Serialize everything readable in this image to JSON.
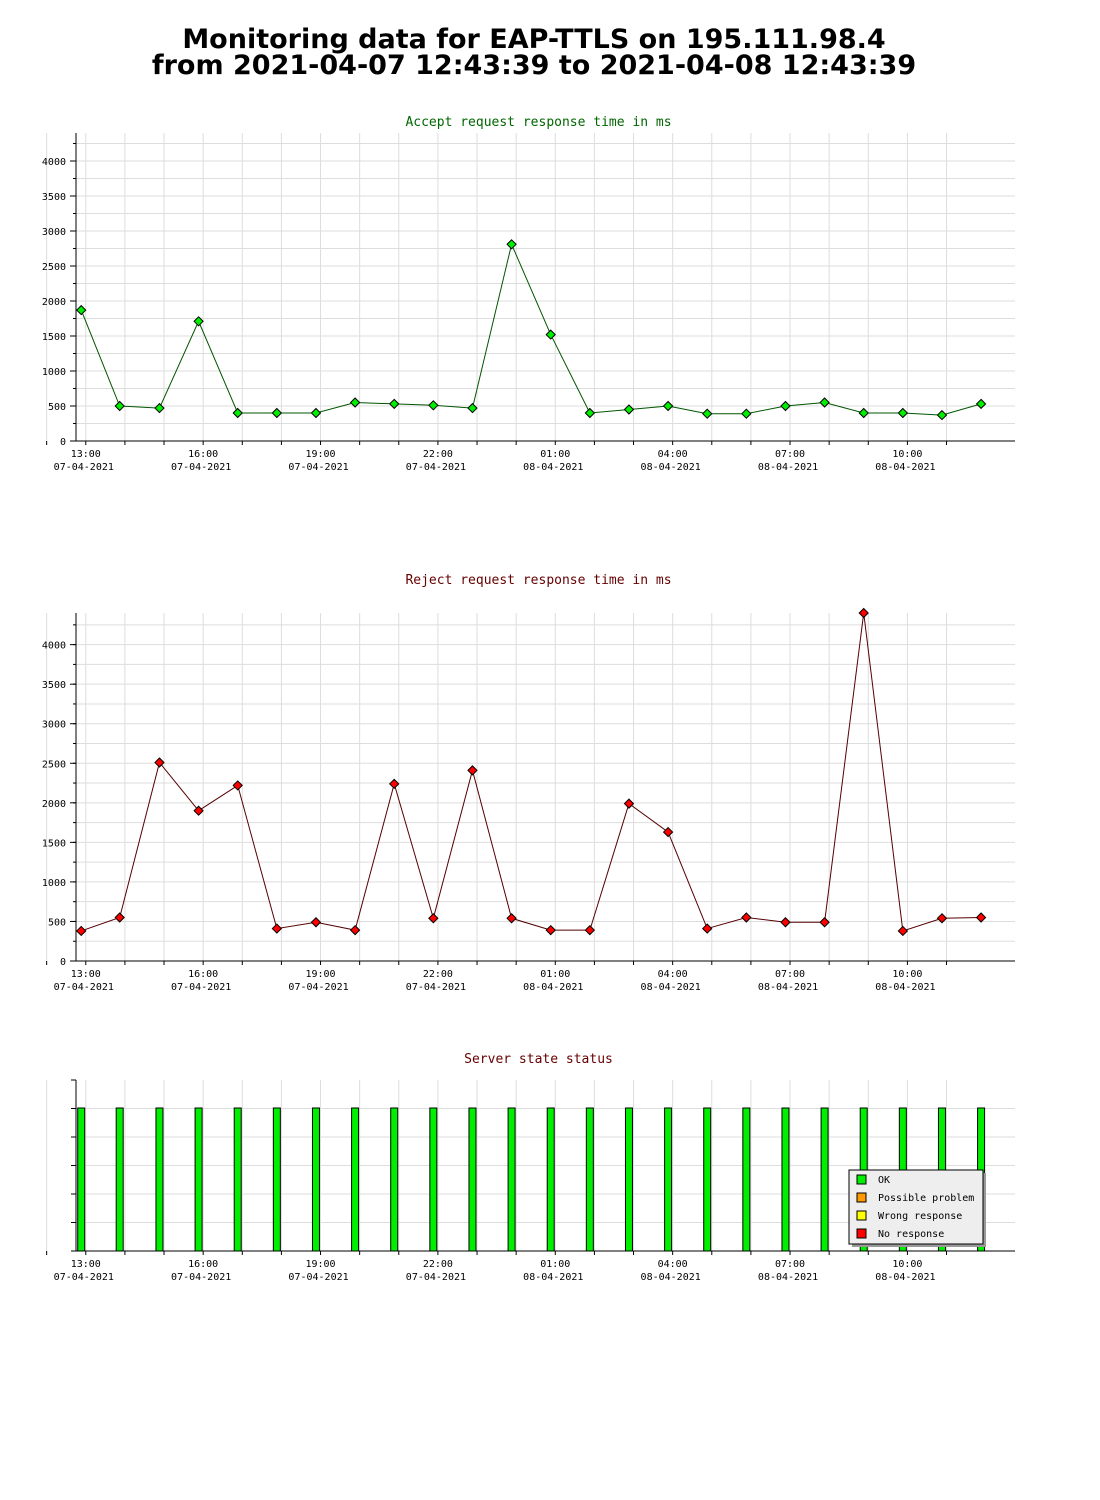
{
  "title": {
    "line1": "Monitoring data for EAP-TTLS on 195.111.98.4",
    "line2": "from 2021-04-07 12:43:39 to 2021-04-08 12:43:39"
  },
  "colors": {
    "accept_title": "#006600",
    "reject_title": "#660000",
    "status_title": "#660000",
    "accept_marker": "#00ee00",
    "reject_marker": "#ff0000",
    "ok": "#00ee00",
    "possible_problem": "#ff9900",
    "wrong_response": "#ffff00",
    "no_response": "#ff0000"
  },
  "chart_data": [
    {
      "type": "line",
      "title": "Accept request response time in ms",
      "xlabel": "",
      "ylabel": "",
      "ylim": [
        0,
        4400
      ],
      "y_ticks": [
        0,
        500,
        1000,
        1500,
        2000,
        2500,
        3000,
        3500,
        4000
      ],
      "x_ticks": [
        {
          "time": "13:00",
          "date": "07-04-2021"
        },
        {
          "time": "16:00",
          "date": "07-04-2021"
        },
        {
          "time": "19:00",
          "date": "07-04-2021"
        },
        {
          "time": "22:00",
          "date": "07-04-2021"
        },
        {
          "time": "01:00",
          "date": "08-04-2021"
        },
        {
          "time": "04:00",
          "date": "08-04-2021"
        },
        {
          "time": "07:00",
          "date": "08-04-2021"
        },
        {
          "time": "10:00",
          "date": "08-04-2021"
        }
      ],
      "x": [
        "12:53",
        "13:52",
        "14:53",
        "15:53",
        "16:53",
        "17:53",
        "18:53",
        "19:53",
        "20:53",
        "21:53",
        "22:53",
        "23:53",
        "00:53",
        "01:53",
        "02:53",
        "03:53",
        "04:53",
        "05:53",
        "06:53",
        "07:53",
        "08:53",
        "09:53",
        "10:53",
        "11:53"
      ],
      "values": [
        1870,
        500,
        470,
        1710,
        400,
        400,
        400,
        550,
        530,
        510,
        470,
        2810,
        1520,
        400,
        450,
        500,
        390,
        390,
        500,
        550,
        400,
        400,
        370,
        530
      ],
      "grid": true
    },
    {
      "type": "line",
      "title": "Reject request response time in ms",
      "xlabel": "",
      "ylabel": "",
      "ylim": [
        0,
        4400
      ],
      "y_ticks": [
        0,
        500,
        1000,
        1500,
        2000,
        2500,
        3000,
        3500,
        4000
      ],
      "x_ticks": [
        {
          "time": "13:00",
          "date": "07-04-2021"
        },
        {
          "time": "16:00",
          "date": "07-04-2021"
        },
        {
          "time": "19:00",
          "date": "07-04-2021"
        },
        {
          "time": "22:00",
          "date": "07-04-2021"
        },
        {
          "time": "01:00",
          "date": "08-04-2021"
        },
        {
          "time": "04:00",
          "date": "08-04-2021"
        },
        {
          "time": "07:00",
          "date": "08-04-2021"
        },
        {
          "time": "10:00",
          "date": "08-04-2021"
        }
      ],
      "x": [
        "12:53",
        "13:52",
        "14:53",
        "15:53",
        "16:53",
        "17:53",
        "18:53",
        "19:53",
        "20:53",
        "21:53",
        "22:53",
        "23:53",
        "00:53",
        "01:53",
        "02:53",
        "03:53",
        "04:53",
        "05:53",
        "06:53",
        "07:53",
        "08:53",
        "09:53",
        "10:53",
        "11:53"
      ],
      "values": [
        380,
        550,
        2510,
        1900,
        2220,
        410,
        490,
        390,
        2240,
        540,
        2410,
        540,
        390,
        390,
        1990,
        1630,
        410,
        550,
        490,
        490,
        4400,
        380,
        540,
        550
      ],
      "grid": true
    },
    {
      "type": "bar",
      "title": "Server state status",
      "xlabel": "",
      "ylabel": "",
      "x_ticks": [
        {
          "time": "13:00",
          "date": "07-04-2021"
        },
        {
          "time": "16:00",
          "date": "07-04-2021"
        },
        {
          "time": "19:00",
          "date": "07-04-2021"
        },
        {
          "time": "22:00",
          "date": "07-04-2021"
        },
        {
          "time": "01:00",
          "date": "08-04-2021"
        },
        {
          "time": "04:00",
          "date": "08-04-2021"
        },
        {
          "time": "07:00",
          "date": "08-04-2021"
        },
        {
          "time": "10:00",
          "date": "08-04-2021"
        }
      ],
      "x": [
        "12:53",
        "13:52",
        "14:53",
        "15:53",
        "16:53",
        "17:53",
        "18:53",
        "19:53",
        "20:53",
        "21:53",
        "22:53",
        "23:53",
        "00:53",
        "01:53",
        "02:53",
        "03:53",
        "04:53",
        "05:53",
        "06:53",
        "07:53",
        "08:53",
        "09:53",
        "10:53",
        "11:53"
      ],
      "states": [
        "OK",
        "OK",
        "OK",
        "OK",
        "OK",
        "OK",
        "OK",
        "OK",
        "OK",
        "OK",
        "OK",
        "OK",
        "OK",
        "OK",
        "OK",
        "OK",
        "OK",
        "OK",
        "OK",
        "OK",
        "OK",
        "OK",
        "OK",
        "OK"
      ],
      "legend": [
        "OK",
        "Possible problem",
        "Wrong response",
        "No response"
      ],
      "legend_position": "bottom-right",
      "grid": true
    }
  ]
}
